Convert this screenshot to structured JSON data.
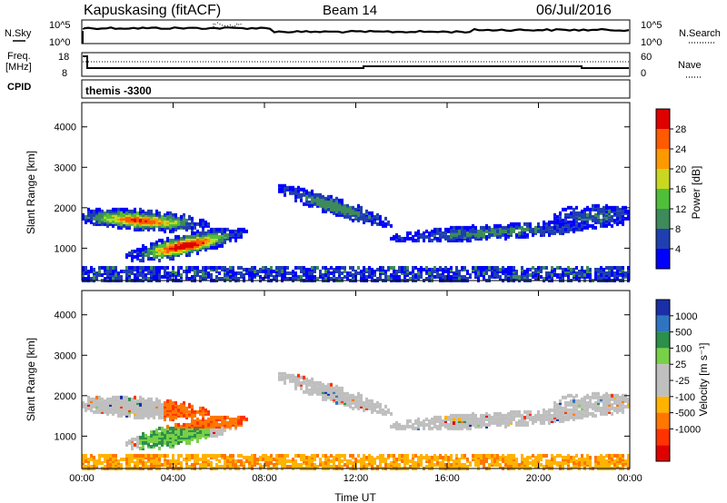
{
  "header": {
    "station": "Kapuskasing (fitACF)",
    "beam": "Beam 14",
    "date": "06/Jul/2016"
  },
  "panel_sky": {
    "left_label": "N.Sky",
    "right_label": "N.Search",
    "left_ticks": [
      "10^5",
      "10^0"
    ],
    "right_ticks": [
      "10^5",
      "10^0"
    ]
  },
  "panel_freq": {
    "left_label_1": "Freq.",
    "left_label_2": "[MHz]",
    "right_label": "Nave",
    "left_ticks": [
      "18",
      "8"
    ],
    "right_ticks": [
      "60",
      "0"
    ]
  },
  "cpid": {
    "label": "CPID",
    "program": "themis -3300"
  },
  "chart_data": [
    {
      "type": "heatmap",
      "name": "power",
      "ylabel": "Slant Range [km]",
      "xlabel": "",
      "x_range_hours": [
        0,
        24
      ],
      "ylim": [
        200,
        4600
      ],
      "y_ticks": [
        "1000",
        "2000",
        "3000",
        "4000"
      ],
      "x_ticks": [
        "00:00",
        "04:00",
        "08:00",
        "12:00",
        "16:00",
        "20:00",
        "00:00"
      ],
      "colorbar_label": "Power [dB]",
      "colorbar_ticks": [
        "4",
        "8",
        "12",
        "16",
        "20",
        "24",
        "28"
      ],
      "colors": [
        "#0000ff",
        "#1f3fb0",
        "#3d8a5a",
        "#4fbf3a",
        "#c8d820",
        "#ff9900",
        "#ff5a00",
        "#e00000"
      ]
    },
    {
      "type": "heatmap",
      "name": "velocity",
      "ylabel": "Slant Range [km]",
      "xlabel": "Time UT",
      "x_range_hours": [
        0,
        24
      ],
      "ylim": [
        200,
        4600
      ],
      "y_ticks": [
        "1000",
        "2000",
        "3000",
        "4000"
      ],
      "x_ticks": [
        "00:00",
        "04:00",
        "08:00",
        "12:00",
        "16:00",
        "20:00",
        "00:00"
      ],
      "colorbar_label": "Velocity [m s⁻¹]",
      "colorbar_ticks": [
        "1000",
        "500",
        "100",
        "25",
        "-25",
        "-100",
        "-500",
        "-1000"
      ],
      "colors": [
        "#1a2fa8",
        "#2f74c0",
        "#2c8f4a",
        "#78d048",
        "#bfbfbf",
        "#bfbfbf",
        "#ffb300",
        "#ff7700",
        "#ff3300",
        "#e00000"
      ]
    }
  ]
}
